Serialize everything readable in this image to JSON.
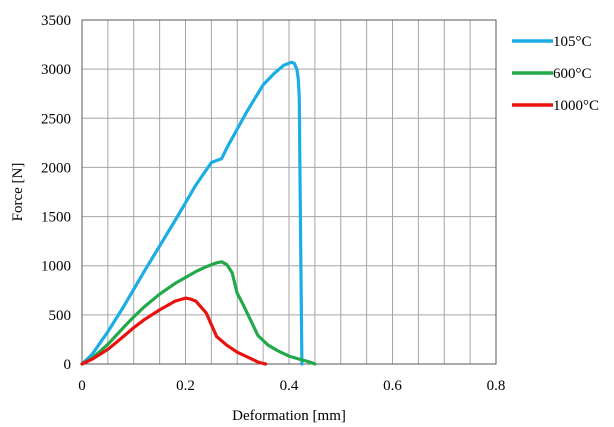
{
  "chart_data": {
    "type": "line",
    "title": "",
    "xlabel": "Deformation [mm]",
    "ylabel": "Force [N]",
    "xlim": [
      0,
      0.8
    ],
    "ylim": [
      0,
      3500
    ],
    "x_ticks": [
      0,
      0.2,
      0.4,
      0.6,
      0.8
    ],
    "x_tick_labels": [
      "0",
      "0.2",
      "0.4",
      "0.6",
      "0.8"
    ],
    "y_ticks": [
      0,
      500,
      1000,
      1500,
      2000,
      2500,
      3000,
      3500
    ],
    "y_tick_labels": [
      "0",
      "500",
      "1000",
      "1500",
      "2000",
      "2500",
      "3000",
      "3500"
    ],
    "x_minor_gridlines_per_major": 4,
    "grid": true,
    "legend_position": "right-top",
    "series": [
      {
        "name": "105°C",
        "color": "#1aaee5",
        "x": [
          0,
          0.02,
          0.05,
          0.08,
          0.1,
          0.12,
          0.15,
          0.18,
          0.2,
          0.22,
          0.25,
          0.27,
          0.28,
          0.3,
          0.32,
          0.35,
          0.37,
          0.39,
          0.4,
          0.405,
          0.41,
          0.415,
          0.418,
          0.42,
          0.421,
          0.422,
          0.423,
          0.424,
          0.425
        ],
        "y": [
          0,
          100,
          330,
          580,
          760,
          940,
          1200,
          1460,
          1640,
          1820,
          2050,
          2090,
          2200,
          2390,
          2580,
          2840,
          2950,
          3040,
          3060,
          3070,
          3060,
          3000,
          2900,
          2700,
          2000,
          1500,
          1000,
          500,
          0
        ]
      },
      {
        "name": "600°C",
        "color": "#23a94a",
        "x": [
          0,
          0.02,
          0.05,
          0.08,
          0.1,
          0.12,
          0.15,
          0.18,
          0.2,
          0.22,
          0.24,
          0.26,
          0.27,
          0.28,
          0.29,
          0.3,
          0.31,
          0.33,
          0.34,
          0.36,
          0.38,
          0.4,
          0.42,
          0.44,
          0.45
        ],
        "y": [
          0,
          60,
          200,
          370,
          480,
          580,
          710,
          820,
          880,
          940,
          990,
          1030,
          1040,
          1010,
          930,
          720,
          620,
          400,
          290,
          190,
          130,
          80,
          50,
          20,
          0
        ]
      },
      {
        "name": "1000°C",
        "color": "#e8120f",
        "x": [
          0,
          0.02,
          0.05,
          0.08,
          0.1,
          0.12,
          0.15,
          0.18,
          0.2,
          0.21,
          0.22,
          0.24,
          0.25,
          0.26,
          0.28,
          0.3,
          0.32,
          0.34,
          0.35,
          0.355
        ],
        "y": [
          0,
          50,
          150,
          280,
          370,
          450,
          550,
          640,
          670,
          660,
          640,
          520,
          400,
          280,
          190,
          120,
          70,
          20,
          5,
          0
        ]
      }
    ]
  }
}
